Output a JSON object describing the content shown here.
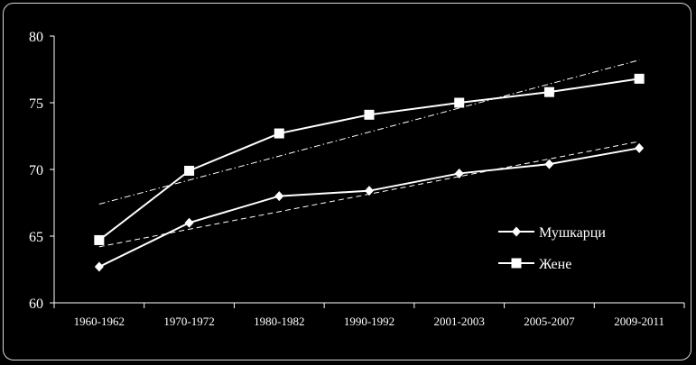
{
  "chart_data": {
    "type": "line",
    "categories": [
      "1960-1962",
      "1970-1972",
      "1980-1982",
      "1990-1992",
      "2001-2003",
      "2005-2007",
      "2009-2011"
    ],
    "ylim": [
      60,
      80
    ],
    "yticks": [
      60,
      65,
      70,
      75,
      80
    ],
    "series": [
      {
        "name": "Мушкарци",
        "marker": "diamond",
        "values": [
          62.7,
          66.0,
          68.0,
          68.4,
          69.7,
          70.4,
          71.6
        ],
        "trend": {
          "start": 64.2,
          "end": 72.1,
          "style": "dashed"
        }
      },
      {
        "name": "Жене",
        "marker": "square",
        "values": [
          64.7,
          69.9,
          72.7,
          74.1,
          75.0,
          75.8,
          76.8
        ],
        "trend": {
          "start": 67.4,
          "end": 78.2,
          "style": "dash-dot"
        }
      }
    ],
    "legend_position": "right",
    "colors": {
      "background": "#000000",
      "line": "#ffffff",
      "frame": "#d9d9d9"
    }
  }
}
